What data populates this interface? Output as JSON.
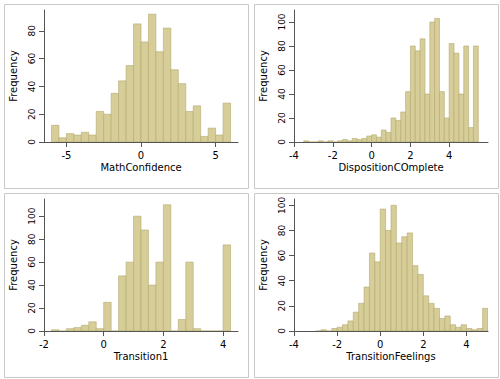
{
  "chart_data": [
    {
      "type": "histogram",
      "x_label": "MathConfidence",
      "y_label": "Frequency",
      "color": "#d6cd98",
      "bins": [
        -6,
        -5.5,
        -5,
        -4.5,
        -4,
        -3.5,
        -3,
        -2.5,
        -2,
        -1.5,
        -1,
        -0.5,
        0,
        0.5,
        1,
        1.5,
        2,
        2.5,
        3,
        3.5,
        4,
        4.5,
        5,
        5.5,
        6
      ],
      "values": [
        12,
        3,
        6,
        5,
        7,
        5,
        22,
        20,
        35,
        44,
        55,
        85,
        72,
        92,
        65,
        82,
        52,
        42,
        22,
        26,
        4,
        10,
        5,
        28
      ],
      "xlim": [
        -6.5,
        6.5
      ],
      "xticks": [
        -5,
        0,
        5
      ],
      "ylim": [
        0,
        95
      ],
      "yticks": [
        0,
        20,
        40,
        60,
        80
      ],
      "grid": false
    },
    {
      "type": "histogram",
      "x_label": "DispositionCOmplete",
      "y_label": "Frequency",
      "color": "#d6cd98",
      "bins": [
        -3.5,
        -3.25,
        -3,
        -2.75,
        -2.5,
        -2.25,
        -2,
        -1.75,
        -1.5,
        -1.25,
        -1,
        -0.75,
        -0.5,
        -0.25,
        0,
        0.25,
        0.5,
        0.75,
        1,
        1.25,
        1.5,
        1.75,
        2,
        2.25,
        2.5,
        2.75,
        3,
        3.25,
        3.5,
        3.75,
        4,
        4.25,
        4.5,
        4.75,
        5,
        5.25,
        5.5
      ],
      "values": [
        1,
        0,
        0,
        1,
        0,
        1,
        0,
        1,
        2,
        1,
        3,
        2,
        3,
        5,
        6,
        4,
        10,
        8,
        20,
        18,
        25,
        42,
        80,
        76,
        86,
        40,
        100,
        103,
        42,
        20,
        82,
        74,
        40,
        80,
        12,
        80
      ],
      "xlim": [
        -4,
        6
      ],
      "xticks": [
        -4,
        -2,
        0,
        2,
        4
      ],
      "ylim": [
        0,
        110
      ],
      "yticks": [
        0,
        20,
        40,
        60,
        80,
        100
      ],
      "grid": false
    },
    {
      "type": "histogram",
      "x_label": "Transition1",
      "y_label": "Frequency",
      "color": "#d6cd98",
      "bins": [
        -1.75,
        -1.5,
        -1.25,
        -1,
        -0.75,
        -0.5,
        -0.25,
        0,
        0.25,
        0.5,
        0.75,
        1,
        1.25,
        1.5,
        1.75,
        2,
        2.25,
        2.5,
        2.75,
        3,
        3.25,
        3.5,
        3.75,
        4,
        4.25
      ],
      "values": [
        1,
        0,
        2,
        3,
        5,
        8,
        2,
        25,
        0,
        48,
        60,
        100,
        88,
        40,
        60,
        110,
        0,
        10,
        60,
        2,
        0,
        0,
        0,
        75
      ],
      "xlim": [
        -2,
        4.5
      ],
      "xticks": [
        -2,
        0,
        2,
        4
      ],
      "ylim": [
        0,
        115
      ],
      "yticks": [
        0,
        20,
        40,
        60,
        80,
        100
      ],
      "grid": false
    },
    {
      "type": "histogram",
      "x_label": "TransitionFeelings",
      "y_label": "Frequency",
      "color": "#d6cd98",
      "bins": [
        -3,
        -2.75,
        -2.5,
        -2.25,
        -2,
        -1.75,
        -1.5,
        -1.25,
        -1,
        -0.75,
        -0.5,
        -0.25,
        0,
        0.25,
        0.5,
        0.75,
        1,
        1.25,
        1.5,
        1.75,
        2,
        2.25,
        2.5,
        2.75,
        3,
        3.25,
        3.5,
        3.75,
        4,
        4.25,
        4.5,
        4.75,
        5
      ],
      "values": [
        0,
        1,
        0,
        2,
        3,
        5,
        8,
        15,
        22,
        35,
        62,
        55,
        97,
        80,
        100,
        70,
        75,
        78,
        52,
        45,
        28,
        22,
        18,
        10,
        12,
        5,
        3,
        5,
        2,
        1,
        2,
        18
      ],
      "xlim": [
        -4,
        5
      ],
      "xticks": [
        -4,
        -2,
        0,
        2,
        4
      ],
      "ylim": [
        0,
        105
      ],
      "yticks": [
        0,
        20,
        40,
        60,
        80,
        100
      ],
      "grid": false
    }
  ]
}
